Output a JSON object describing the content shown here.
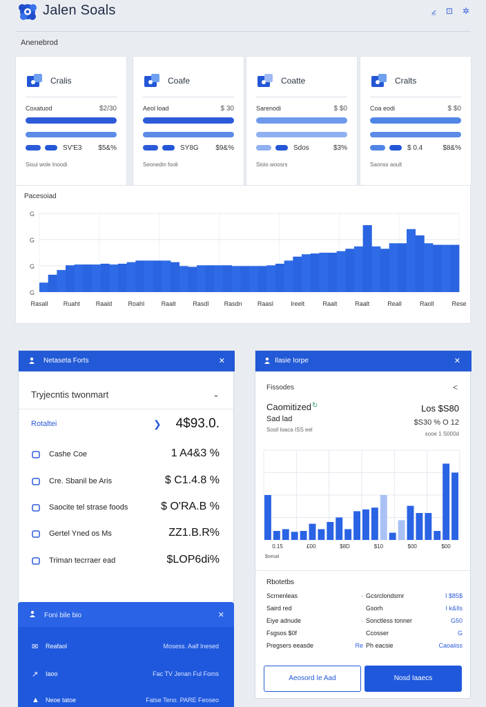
{
  "app": {
    "title": "Jalen Soals",
    "section_label": "Anenebrod"
  },
  "header_icons": [
    "chart-icon",
    "grid-icon",
    "settings-icon"
  ],
  "header_icon_glyphs": [
    "⦤",
    "⊡",
    "✲"
  ],
  "cards": [
    {
      "title": "Cralis",
      "label": "Coxatuod",
      "value": "$2/30",
      "stat1": "SV'E3",
      "stat2": "$5&%",
      "footer": "Sioui wole Inoodi",
      "accent": "#2d5bd8",
      "light": false
    },
    {
      "title": "Coafe",
      "label": "Aeol load",
      "value": "$ 30",
      "stat1": "SY8G",
      "stat2": "$9&%",
      "footer": "Seonedin fooli",
      "accent": "#2d5bd8",
      "light": false
    },
    {
      "title": "Coatte",
      "label": "Sarenodi",
      "value": "$ $0",
      "stat1": "Sdos",
      "stat2": "$3%",
      "footer": "Sioio woosrs",
      "accent": "#6f9aec",
      "light": true
    },
    {
      "title": "Cralts",
      "label": "Coa eodi",
      "value": "$ $0",
      "stat1": "$ 0.4",
      "stat2": "$8&%",
      "footer": "Saonss aoult",
      "accent": "#4f86e6",
      "light": false
    }
  ],
  "main_chart": {
    "title": "Pacesoiad"
  },
  "chart_data": [
    {
      "type": "area",
      "title": "Pacesoiad",
      "y_ticks": [
        "G",
        "G",
        "G",
        "G"
      ],
      "x_ticks": [
        "Rasall",
        "Ruaht",
        "Raald",
        "Roahl",
        "Raalt",
        "Rasdl",
        "Rasdn",
        "Raasl",
        "Ireelt",
        "Raalt",
        "Raalt",
        "Reall",
        "Raoll",
        "Rese"
      ],
      "values": [
        12,
        22,
        28,
        34,
        35,
        35,
        35,
        36,
        35,
        36,
        38,
        40,
        40,
        40,
        40,
        38,
        33,
        32,
        34,
        34,
        34,
        34,
        33,
        33,
        33,
        33,
        34,
        36,
        40,
        45,
        48,
        49,
        50,
        50,
        52,
        55,
        58,
        85,
        58,
        55,
        62,
        62,
        80,
        72,
        62,
        60,
        60,
        60
      ],
      "ylim": [
        0,
        100
      ],
      "grid": true
    },
    {
      "type": "bar",
      "x_ticks": [
        "0.15",
        "£00",
        "$8D",
        "$10",
        "$00",
        "$00"
      ],
      "values": [
        50,
        10,
        12,
        9,
        10,
        18,
        12,
        20,
        25,
        12,
        32,
        34,
        36,
        50,
        8,
        22,
        38,
        30,
        30,
        10,
        85,
        75
      ],
      "ylim": [
        0,
        100
      ],
      "grid": true,
      "footnote": "$sesal"
    }
  ],
  "left_panel": {
    "header_title": "Netaseta Forts",
    "header_close": "✕",
    "section_title": "Tryjecntis twonmart",
    "section_chevron": "⌄",
    "total_label": "Rotaltei",
    "total_arrow": "❯",
    "total_value": "4$93.0.",
    "rows": [
      {
        "icon": "home-icon",
        "label": "Cashe Coe",
        "value": "1 A4&3 %"
      },
      {
        "icon": "tag-icon",
        "label": "Cre. Sbanil be Aris",
        "value": "$ C1.4.8 %"
      },
      {
        "icon": "card-icon",
        "label": "Saocite tel strase foods",
        "value": "$ O'RA.B %"
      },
      {
        "icon": "bookmark-icon",
        "label": "Gertel Yned os Ms",
        "value": "ZZ1.B.R%"
      },
      {
        "icon": "refresh-icon",
        "label": "Triman tecrraer ead",
        "value": "$LOP6di%"
      }
    ]
  },
  "bottom_panel": {
    "header_title": "Foni bile bio",
    "header_close": "✕",
    "rows": [
      {
        "icon": "✉",
        "label": "Reafaol",
        "value": "Mosess. Aalf Inesed"
      },
      {
        "icon": "↗",
        "label": "Iaoo",
        "value": "Fac TV Jenan Ful Foms"
      },
      {
        "icon": "▲",
        "label": "Neoe tatoe",
        "value": "Fatse Teno. PARE Feoseo"
      }
    ]
  },
  "right_panel": {
    "header_title": "Ilasie Iorpe",
    "header_close": "✕",
    "sub_title": "Fissodes",
    "sub_chevron": "<",
    "big_label": "Caomitized",
    "big_icon": "↻",
    "big_value": "Los $S80",
    "sub2_label": "Sad lad",
    "sub2_value": "$S30 % O 12",
    "note": "Sosil loaca ISS eel",
    "note_value": "sooe 1 S000d",
    "details_title": "Rbotetbs",
    "details": [
      {
        "label": "Scrnenleas",
        "value": "·",
        "label2": "Gcsrclondsmr",
        "value2": "I $85$"
      },
      {
        "label": "Saird red",
        "value": "",
        "label2": "Gsorh",
        "value2": "I k&Ils"
      },
      {
        "label": "Eiye adnude",
        "value": "·",
        "label2": "Sonctless tonner",
        "value2": "G50"
      },
      {
        "label": "Fsgsos $0f",
        "value": "",
        "label2": "Ccosser",
        "value2": "G"
      },
      {
        "label": "Pregsers eeasde",
        "value": "Re",
        "label2": "Ph eacsie",
        "value2": "Caoaiiss"
      }
    ],
    "btn_outline": "Aeosord Ie Aad",
    "btn_solid": "Nosd Iaaecs"
  }
}
